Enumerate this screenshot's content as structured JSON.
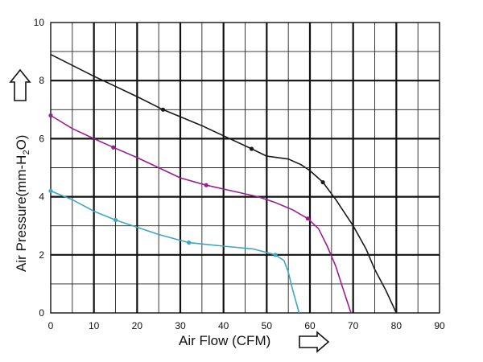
{
  "chart_data": {
    "type": "line",
    "title": "",
    "xlabel": "Air Flow (CFM)",
    "ylabel": {
      "prefix": "Air Pressure(mm-H",
      "subscript": "2",
      "suffix": "O)"
    },
    "xlim": [
      0,
      90
    ],
    "ylim": [
      0,
      10
    ],
    "x_ticks": [
      "0",
      "10",
      "20",
      "30",
      "40",
      "50",
      "60",
      "70",
      "80",
      "90"
    ],
    "y_ticks": [
      "0",
      "2",
      "4",
      "6",
      "8",
      "10"
    ],
    "grid": true,
    "legend": "none",
    "series": [
      {
        "color": "#1a1a1a",
        "points": [
          [
            0,
            8.9
          ],
          [
            10,
            8.15
          ],
          [
            20,
            7.45
          ],
          [
            26,
            7.0
          ],
          [
            35,
            6.45
          ],
          [
            40,
            6.1
          ],
          [
            46.5,
            5.65
          ],
          [
            50,
            5.4
          ],
          [
            55,
            5.3
          ],
          [
            58,
            5.1
          ],
          [
            60,
            4.9
          ],
          [
            63,
            4.5
          ],
          [
            66,
            3.9
          ],
          [
            70,
            3.0
          ],
          [
            73,
            2.2
          ],
          [
            75,
            1.5
          ],
          [
            77.5,
            0.8
          ],
          [
            80,
            0
          ]
        ],
        "markers": [
          [
            26,
            7.0
          ],
          [
            46.5,
            5.65
          ],
          [
            63,
            4.5
          ]
        ]
      },
      {
        "color": "#9b1e8c",
        "points": [
          [
            0,
            6.8
          ],
          [
            5,
            6.35
          ],
          [
            10,
            6.0
          ],
          [
            14.5,
            5.7
          ],
          [
            20,
            5.35
          ],
          [
            25,
            5.0
          ],
          [
            30,
            4.65
          ],
          [
            36,
            4.4
          ],
          [
            42,
            4.2
          ],
          [
            48,
            4.0
          ],
          [
            52,
            3.8
          ],
          [
            56,
            3.55
          ],
          [
            59.5,
            3.25
          ],
          [
            62,
            2.9
          ],
          [
            64,
            2.3
          ],
          [
            66,
            1.6
          ],
          [
            67.5,
            0.9
          ],
          [
            69.5,
            0
          ]
        ],
        "markers": [
          [
            0,
            6.8
          ],
          [
            14.5,
            5.7
          ],
          [
            36,
            4.4
          ],
          [
            59.5,
            3.25
          ]
        ]
      },
      {
        "color": "#3fa6c2",
        "points": [
          [
            0,
            4.2
          ],
          [
            5,
            3.9
          ],
          [
            10,
            3.5
          ],
          [
            15,
            3.2
          ],
          [
            20,
            2.95
          ],
          [
            25,
            2.7
          ],
          [
            32,
            2.42
          ],
          [
            40,
            2.3
          ],
          [
            47,
            2.2
          ],
          [
            52,
            2.0
          ],
          [
            54,
            1.8
          ],
          [
            55,
            1.4
          ],
          [
            56,
            0.8
          ],
          [
            57.5,
            0
          ]
        ],
        "markers": [
          [
            0,
            4.2
          ],
          [
            15,
            3.2
          ],
          [
            32,
            2.42
          ],
          [
            52,
            2.0
          ]
        ]
      }
    ],
    "icons": {
      "y_arrow": "up-arrow-icon",
      "x_arrow": "right-arrow-icon"
    }
  }
}
